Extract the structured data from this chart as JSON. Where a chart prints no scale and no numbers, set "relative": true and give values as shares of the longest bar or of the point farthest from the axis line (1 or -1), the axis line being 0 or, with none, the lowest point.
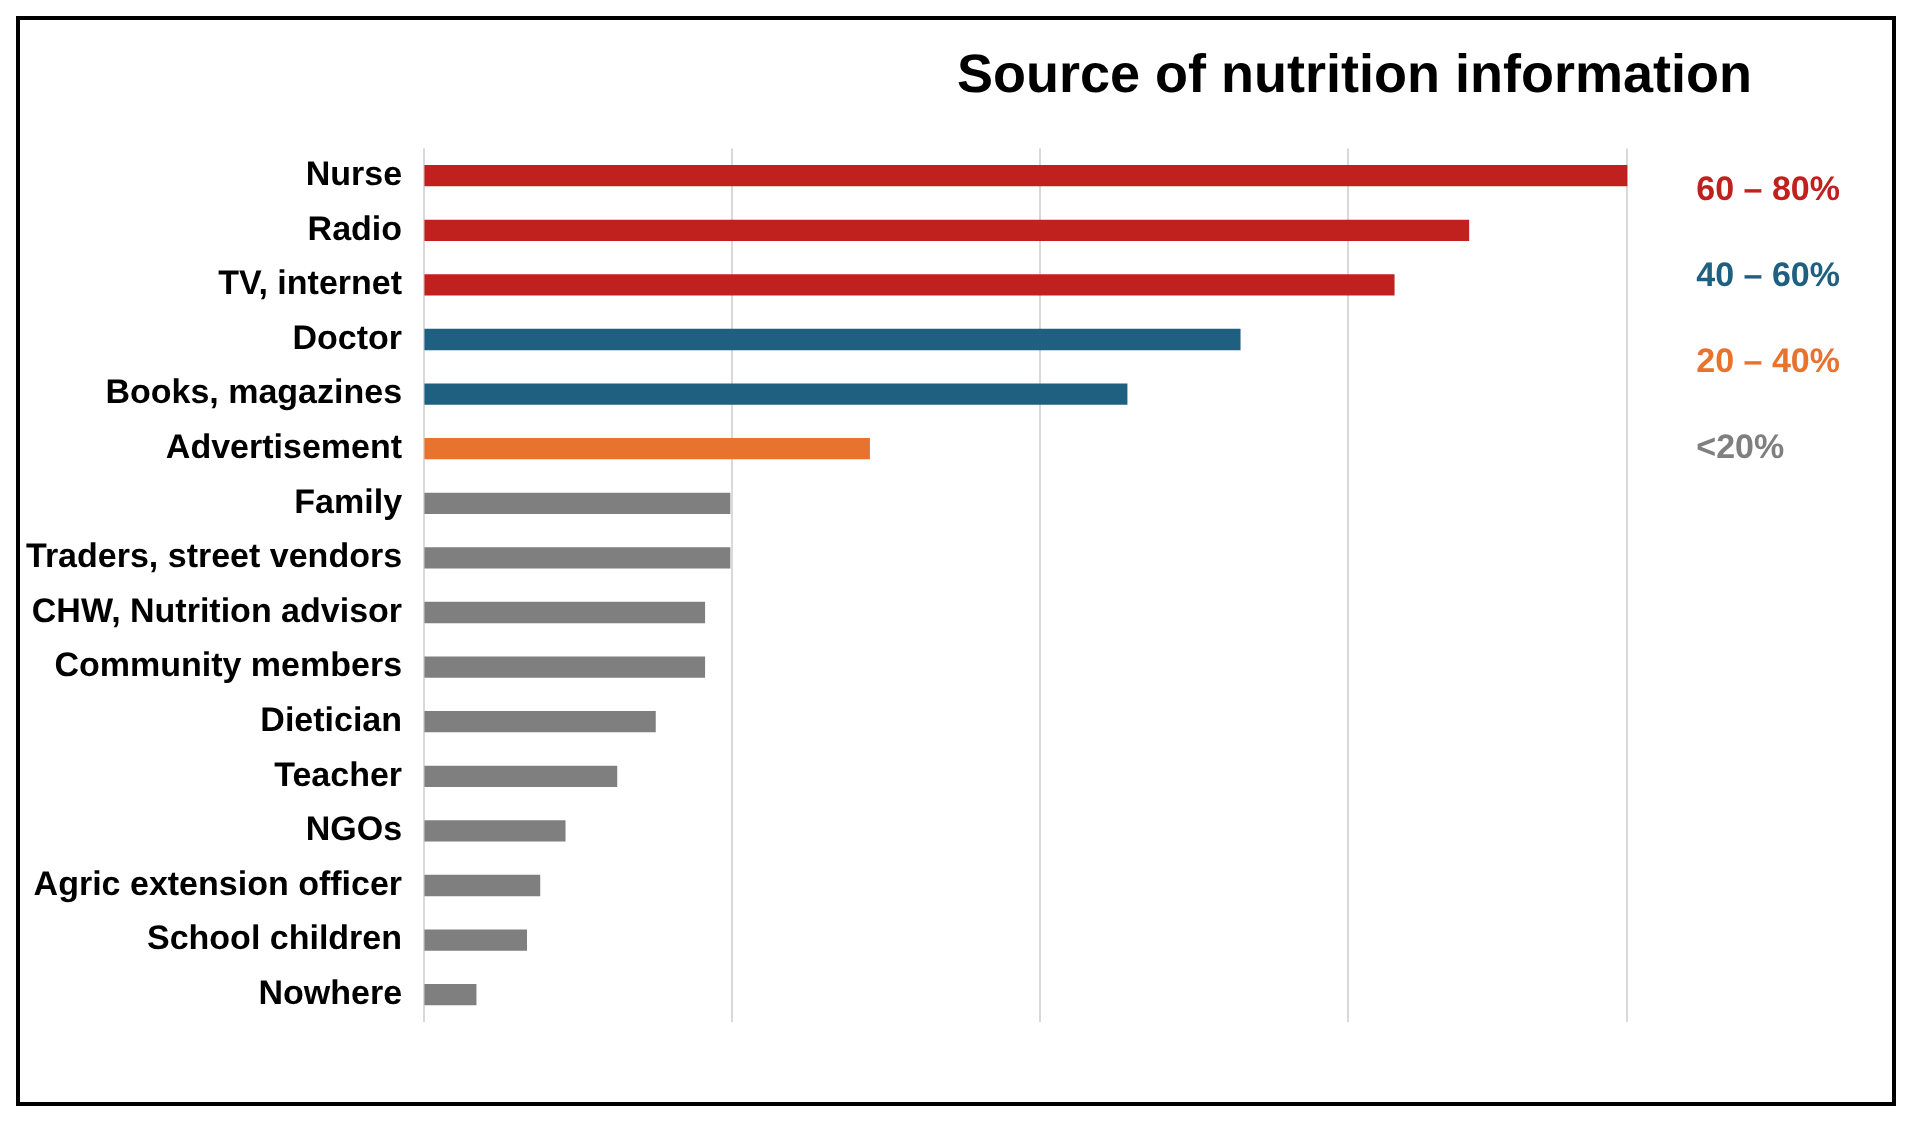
{
  "chart_data": {
    "type": "bar",
    "title": "Source of nutrition information",
    "orientation": "horizontal",
    "stacked": true,
    "relative": true,
    "grid": "x",
    "legend": "right",
    "categories": [
      "Nurse",
      "Radio",
      "TV, internet",
      "Doctor",
      "Books, magazines",
      "Advertisement",
      "Family",
      "Traders, street vendors",
      "CHW, Nutrition advisor",
      "Community members",
      "Dietician",
      "Teacher",
      "NGOs",
      "Agric extension officer",
      "School children",
      "Nowhere"
    ],
    "series": [
      {
        "name": "60 – 80%",
        "color": "#c0201e",
        "values": [
          1,
          0.868,
          0.806,
          null,
          null,
          null,
          null,
          null,
          null,
          null,
          null,
          null,
          null,
          null,
          null,
          null
        ]
      },
      {
        "name": "40 – 60%",
        "color": "#1f5f7f",
        "values": [
          null,
          null,
          null,
          0.678,
          0.584,
          null,
          null,
          null,
          null,
          null,
          null,
          null,
          null,
          null,
          null,
          null
        ]
      },
      {
        "name": "20 – 40%",
        "color": "#e8732e",
        "values": [
          null,
          null,
          null,
          null,
          null,
          0.37,
          null,
          null,
          null,
          null,
          null,
          null,
          null,
          null,
          null,
          null
        ]
      },
      {
        "name": "<20%",
        "color": "#7f7f7f",
        "values": [
          null,
          null,
          null,
          null,
          null,
          null,
          0.254,
          0.254,
          0.233,
          0.233,
          0.192,
          0.16,
          0.117,
          0.096,
          0.085,
          0.043
        ]
      }
    ]
  }
}
